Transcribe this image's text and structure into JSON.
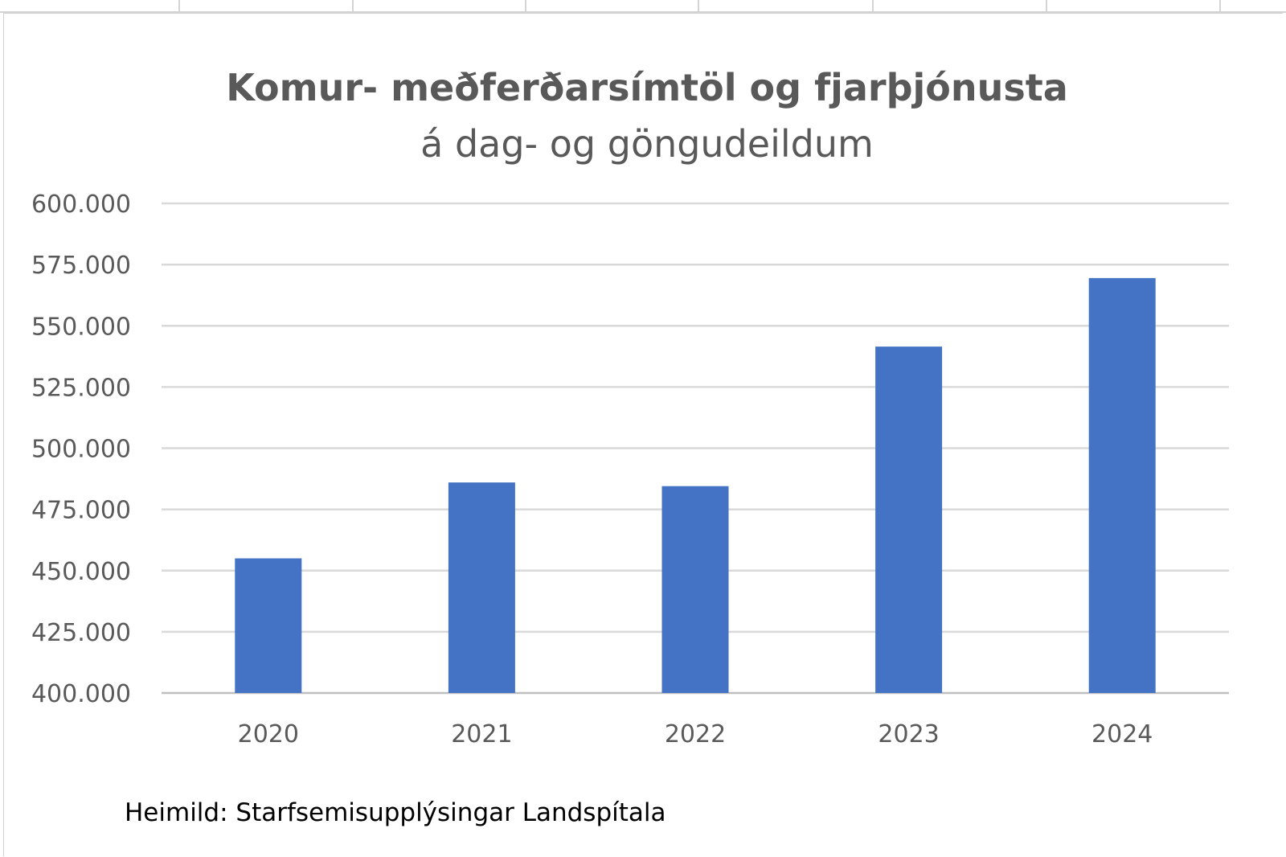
{
  "chart_data": {
    "type": "bar",
    "title": "Komur- meðferðarsímtöl og fjarþjónusta",
    "subtitle": "á dag- og göngudeildum",
    "categories": [
      "2020",
      "2021",
      "2022",
      "2023",
      "2024"
    ],
    "series": [
      {
        "values": [
          455000,
          486000,
          484500,
          541500,
          569500
        ]
      }
    ],
    "ylim": [
      400000,
      600000
    ],
    "yticks": [
      "400.000",
      "425.000",
      "450.000",
      "475.000",
      "500.000",
      "525.000",
      "550.000",
      "575.000",
      "600.000"
    ],
    "ytick_values": [
      400000,
      425000,
      450000,
      475000,
      500000,
      525000,
      550000,
      575000,
      600000
    ],
    "grid": true,
    "legend": "none",
    "source_note": "Heimild: Starfsemisupplýsingar Landspítala",
    "colors": {
      "bar": "#4472C4",
      "grid": "#d9d9d9",
      "text": "#595959",
      "title": "#595959"
    }
  }
}
